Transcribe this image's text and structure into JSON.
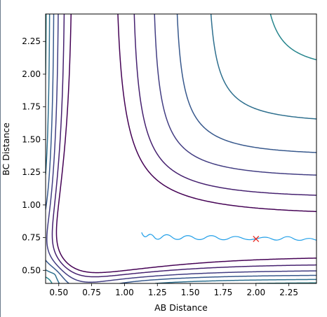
{
  "chart_data": {
    "type": "contour",
    "title": "",
    "xlabel": "AB Distance",
    "ylabel": "BC Distance",
    "xlim": [
      0.4,
      2.46
    ],
    "ylim": [
      0.4,
      2.46
    ],
    "xticks": [
      "0.50",
      "0.75",
      "1.00",
      "1.25",
      "1.50",
      "1.75",
      "2.00",
      "2.25"
    ],
    "yticks": [
      "0.50",
      "0.75",
      "1.00",
      "1.25",
      "1.50",
      "1.75",
      "2.00",
      "2.25"
    ],
    "colormap": [
      "#440154",
      "#46327e",
      "#365c8d",
      "#277f8e",
      "#1fa187",
      "#4ac16d",
      "#a0da39",
      "#fde725"
    ],
    "contour_levels": [
      0.45,
      1.0,
      1.7,
      2.4,
      3.2,
      4.0,
      4.8,
      5.6,
      6.5,
      7.5,
      8.6,
      9.9
    ],
    "grid": false,
    "legend": "none",
    "trajectory": {
      "color": "#1f9ee8",
      "points": [
        [
          1.13,
          0.79
        ],
        [
          1.15,
          0.74
        ],
        [
          1.2,
          0.79
        ],
        [
          1.25,
          0.72
        ],
        [
          1.32,
          0.79
        ],
        [
          1.4,
          0.72
        ],
        [
          1.48,
          0.78
        ],
        [
          1.57,
          0.72
        ],
        [
          1.66,
          0.78
        ],
        [
          1.75,
          0.72
        ],
        [
          1.84,
          0.77
        ],
        [
          1.93,
          0.73
        ],
        [
          2.0,
          0.74
        ],
        [
          2.08,
          0.76
        ],
        [
          2.16,
          0.72
        ],
        [
          2.24,
          0.77
        ],
        [
          2.32,
          0.72
        ],
        [
          2.4,
          0.75
        ],
        [
          2.46,
          0.73
        ]
      ]
    },
    "marker": {
      "x": 2.0,
      "y": 0.74,
      "symbol": "x",
      "color": "#e8251d"
    }
  }
}
